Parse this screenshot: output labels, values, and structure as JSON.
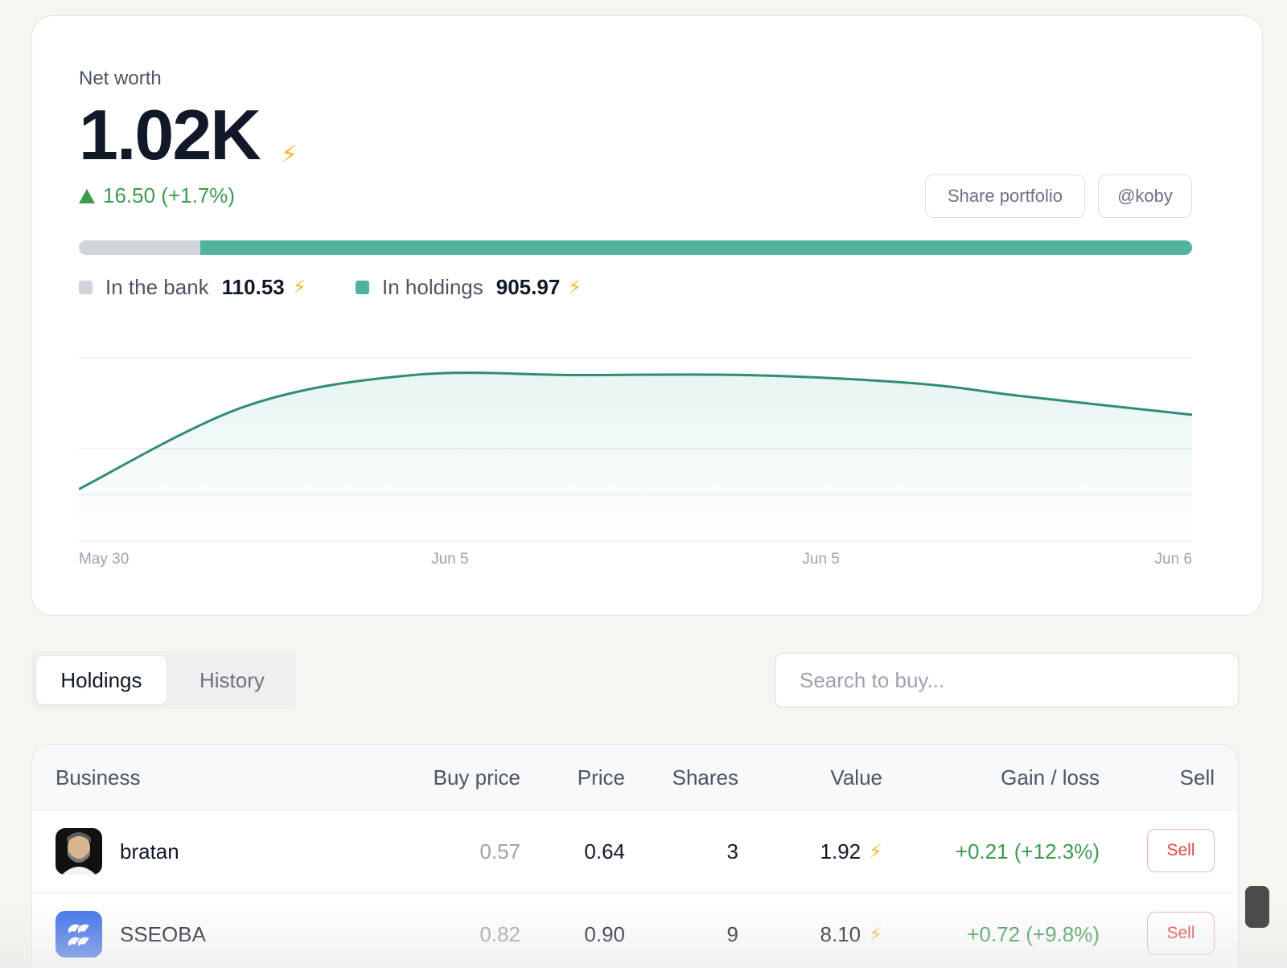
{
  "net_worth": {
    "label": "Net worth",
    "value": "1.02K",
    "change": "16.50 (+1.7%)",
    "actions": {
      "share_label": "Share portfolio",
      "user_label": "@koby"
    },
    "allocation": {
      "bank_fraction": 0.109,
      "holdings_fraction": 0.891,
      "bank_label": "In the bank",
      "bank_value": "110.53",
      "holdings_label": "In holdings",
      "holdings_value": "905.97"
    },
    "colors": {
      "bank": "#d1d5db",
      "holdings": "#52b2a0",
      "line": "#2f8c78",
      "gain": "#3d9a4e",
      "bolt": "#f5b82e"
    }
  },
  "chart_data": {
    "type": "area",
    "x_ticks": [
      "May 30",
      "Jun 5",
      "Jun 5",
      "Jun 6"
    ],
    "x": [
      0,
      0.15,
      0.3,
      0.45,
      0.6,
      0.75,
      0.85,
      1.0
    ],
    "values": [
      1000.2,
      1016.5,
      1022.6,
      1022.6,
      1022.6,
      1021.0,
      1018.4,
      1014.8
    ],
    "ylim": [
      990,
      1026
    ],
    "grid": true
  },
  "tabs": [
    {
      "label": "Holdings",
      "active": true
    },
    {
      "label": "History",
      "active": false
    }
  ],
  "search": {
    "placeholder": "Search to buy..."
  },
  "table": {
    "headers": {
      "business": "Business",
      "buy_price": "Buy price",
      "price": "Price",
      "shares": "Shares",
      "value": "Value",
      "gain_loss": "Gain / loss",
      "sell": "Sell"
    },
    "rows": [
      {
        "name": "bratan",
        "logo": "bearded-man-avatar",
        "buy_price": "0.57",
        "price": "0.64",
        "shares": "3",
        "value": "1.92",
        "gain": "+0.21 (+12.3%)",
        "sell_label": "Sell"
      },
      {
        "name": "SSEOBA",
        "logo": "sseoba-logo",
        "buy_price": "0.82",
        "price": "0.90",
        "shares": "9",
        "value": "8.10",
        "gain": "+0.72 (+9.8%)",
        "sell_label": "Sell"
      }
    ]
  },
  "icons": {
    "currency": "lightning-bolt-icon",
    "up": "triangle-up-icon"
  }
}
